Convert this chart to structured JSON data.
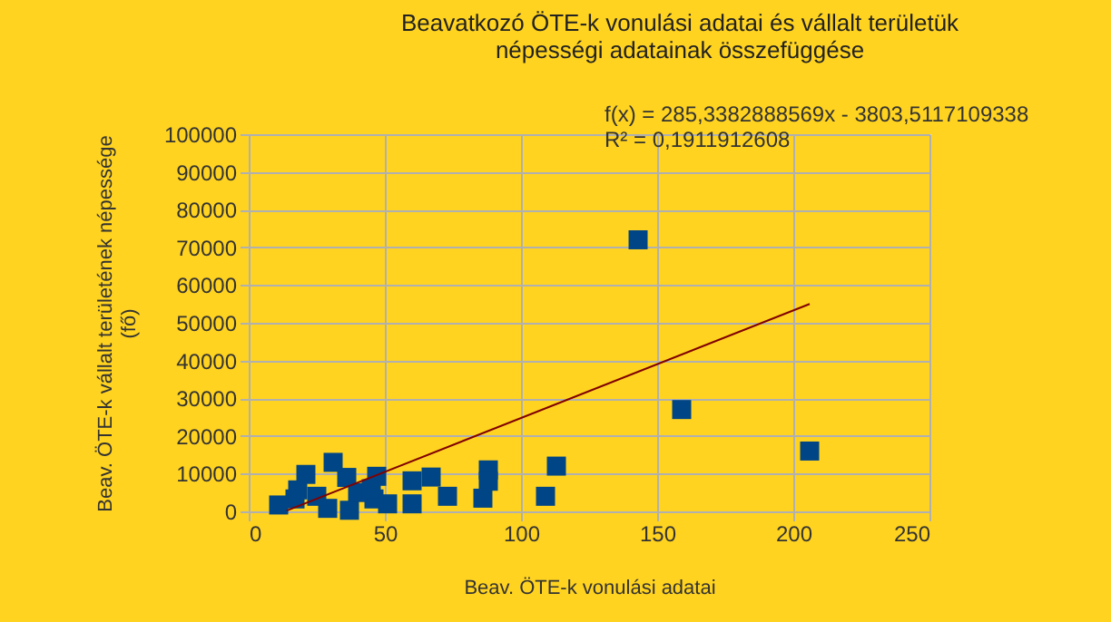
{
  "chart_data": {
    "type": "scatter",
    "title": "Beavatkozó ÖTE-k vonulási adatai és vállalt területük\nnépességi adatainak összefüggése",
    "xlabel": "Beav. ÖTE-k vonulási adatai",
    "ylabel": "Beav. ÖTE-k vállalt területének népessége\n(fő)",
    "annotations": [
      "f(x) = 285,3382888569x - 3803,5117109338",
      "R² = 0,1911912608"
    ],
    "xlim": [
      0,
      250
    ],
    "xticks": [
      0,
      50,
      100,
      150,
      200,
      250
    ],
    "ylim": [
      0,
      100000
    ],
    "yticks": [
      0,
      10000,
      20000,
      30000,
      40000,
      50000,
      60000,
      70000,
      80000,
      90000,
      100000
    ],
    "grid": true,
    "series": [
      {
        "marker": "square",
        "color": "#004586",
        "x": [
          143,
          159,
          206,
          113,
          88,
          88,
          109,
          86,
          73,
          67,
          60,
          60,
          51,
          47,
          46,
          37,
          36,
          31,
          29,
          21,
          18,
          17,
          11,
          40,
          45,
          25
        ],
        "values": [
          72000,
          27000,
          16000,
          12000,
          11000,
          8000,
          4000,
          3500,
          4000,
          9100,
          8100,
          2000,
          2000,
          9300,
          3300,
          300,
          9000,
          13000,
          800,
          9800,
          5700,
          3300,
          1700,
          5000,
          6000,
          4000
        ]
      },
      {
        "type": "line",
        "line_style": "solid",
        "color": "#800000",
        "x": [
          14,
          206
        ],
        "values": [
          200,
          55000
        ]
      }
    ]
  }
}
